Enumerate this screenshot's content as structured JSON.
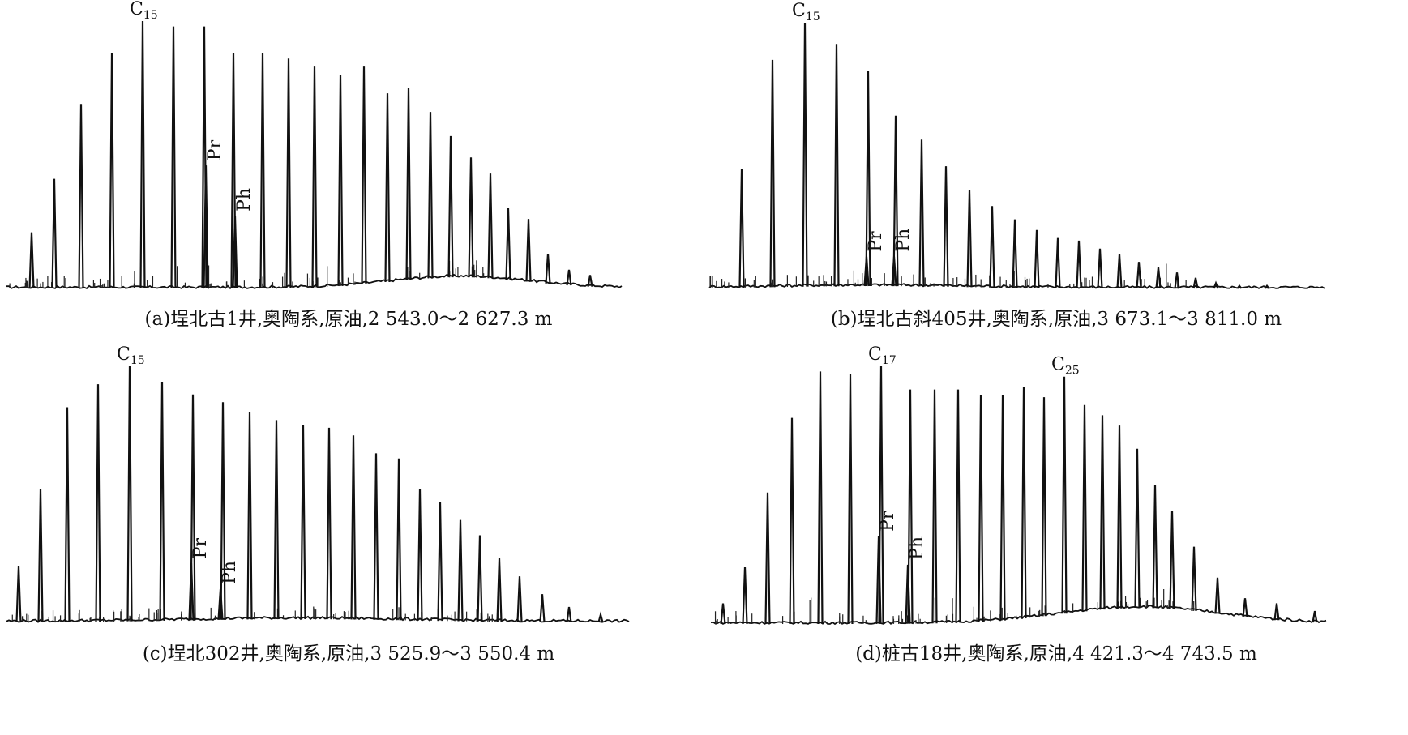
{
  "chart_data": [
    {
      "type": "line",
      "caption": "(a)埕北古1井,奥陶系,原油,2 543.0～2 627.3 m",
      "peak_labels": [
        {
          "base": "C",
          "sub": "15",
          "peak": "C15"
        },
        {
          "base": "Pr",
          "sub": "",
          "peak": "Pr"
        },
        {
          "base": "Ph",
          "sub": "",
          "peak": "Ph"
        }
      ],
      "ymax": 100,
      "peaks": [
        {
          "x": 31,
          "y": 21
        },
        {
          "x": 59,
          "y": 41
        },
        {
          "x": 92,
          "y": 69
        },
        {
          "x": 130,
          "y": 88
        },
        {
          "x": 168,
          "y": 100
        },
        {
          "x": 206,
          "y": 98
        },
        {
          "x": 244,
          "y": 98
        },
        {
          "x": 280,
          "y": 88
        },
        {
          "x": 316,
          "y": 88
        },
        {
          "x": 348,
          "y": 86
        },
        {
          "x": 380,
          "y": 83
        },
        {
          "x": 412,
          "y": 80
        },
        {
          "x": 441,
          "y": 83
        },
        {
          "x": 470,
          "y": 73
        },
        {
          "x": 496,
          "y": 75
        },
        {
          "x": 523,
          "y": 66
        },
        {
          "x": 548,
          "y": 57
        },
        {
          "x": 573,
          "y": 49
        },
        {
          "x": 597,
          "y": 43
        },
        {
          "x": 619,
          "y": 30
        },
        {
          "x": 644,
          "y": 26
        },
        {
          "x": 668,
          "y": 13
        },
        {
          "x": 694,
          "y": 7
        },
        {
          "x": 720,
          "y": 5
        },
        {
          "x": 246,
          "y": 46,
          "name": "Pr"
        },
        {
          "x": 282,
          "y": 27,
          "name": "Ph"
        }
      ]
    },
    {
      "type": "line",
      "caption": "(b)埕北古斜405井,奥陶系,原油,3 673.1～3 811.0 m",
      "peak_labels": [
        {
          "base": "C",
          "sub": "15",
          "peak": "C15"
        },
        {
          "base": "Pr",
          "sub": "",
          "peak": "Pr"
        },
        {
          "base": "Ph",
          "sub": "",
          "peak": "Ph"
        }
      ],
      "ymax": 100,
      "peaks": [
        {
          "x": 40,
          "y": 45
        },
        {
          "x": 78,
          "y": 86
        },
        {
          "x": 118,
          "y": 100
        },
        {
          "x": 157,
          "y": 92
        },
        {
          "x": 196,
          "y": 82
        },
        {
          "x": 230,
          "y": 65
        },
        {
          "x": 262,
          "y": 56
        },
        {
          "x": 292,
          "y": 46
        },
        {
          "x": 321,
          "y": 37
        },
        {
          "x": 349,
          "y": 31
        },
        {
          "x": 377,
          "y": 26
        },
        {
          "x": 404,
          "y": 22
        },
        {
          "x": 430,
          "y": 19
        },
        {
          "x": 456,
          "y": 18
        },
        {
          "x": 482,
          "y": 15
        },
        {
          "x": 506,
          "y": 13
        },
        {
          "x": 530,
          "y": 10
        },
        {
          "x": 554,
          "y": 8
        },
        {
          "x": 577,
          "y": 6
        },
        {
          "x": 600,
          "y": 4
        },
        {
          "x": 625,
          "y": 2
        },
        {
          "x": 654,
          "y": 1
        },
        {
          "x": 688,
          "y": 1
        },
        {
          "x": 194,
          "y": 12,
          "name": "Pr"
        },
        {
          "x": 228,
          "y": 12,
          "name": "Ph"
        }
      ]
    },
    {
      "type": "line",
      "caption": "(c)埕北302井,奥陶系,原油,3 525.9～3 550.4 m",
      "peak_labels": [
        {
          "base": "C",
          "sub": "15",
          "peak": "C15"
        },
        {
          "base": "Pr",
          "sub": "",
          "peak": "Pr"
        },
        {
          "base": "Ph",
          "sub": "",
          "peak": "Ph"
        }
      ],
      "ymax": 100,
      "peaks": [
        {
          "x": 15,
          "y": 22
        },
        {
          "x": 42,
          "y": 52
        },
        {
          "x": 75,
          "y": 84
        },
        {
          "x": 113,
          "y": 93
        },
        {
          "x": 152,
          "y": 100
        },
        {
          "x": 192,
          "y": 94
        },
        {
          "x": 230,
          "y": 89
        },
        {
          "x": 267,
          "y": 86
        },
        {
          "x": 300,
          "y": 82
        },
        {
          "x": 333,
          "y": 79
        },
        {
          "x": 366,
          "y": 77
        },
        {
          "x": 398,
          "y": 76
        },
        {
          "x": 428,
          "y": 73
        },
        {
          "x": 456,
          "y": 66
        },
        {
          "x": 484,
          "y": 64
        },
        {
          "x": 510,
          "y": 52
        },
        {
          "x": 535,
          "y": 47
        },
        {
          "x": 560,
          "y": 40
        },
        {
          "x": 584,
          "y": 34
        },
        {
          "x": 608,
          "y": 25
        },
        {
          "x": 633,
          "y": 18
        },
        {
          "x": 661,
          "y": 11
        },
        {
          "x": 694,
          "y": 6
        },
        {
          "x": 733,
          "y": 3
        },
        {
          "x": 228,
          "y": 23,
          "name": "Pr"
        },
        {
          "x": 264,
          "y": 13,
          "name": "Ph"
        }
      ]
    },
    {
      "type": "line",
      "caption": "(d)桩古18井,奥陶系,原油,4 421.3～4 743.5 m",
      "peak_labels": [
        {
          "base": "C",
          "sub": "17",
          "peak": "C17"
        },
        {
          "base": "C",
          "sub": "25",
          "peak": "C25"
        },
        {
          "base": "Pr",
          "sub": "",
          "peak": "Pr"
        },
        {
          "base": "Ph",
          "sub": "",
          "peak": "Ph"
        }
      ],
      "ymax": 100,
      "peaks": [
        {
          "x": 15,
          "y": 8
        },
        {
          "x": 42,
          "y": 22
        },
        {
          "x": 70,
          "y": 51
        },
        {
          "x": 100,
          "y": 80
        },
        {
          "x": 135,
          "y": 98
        },
        {
          "x": 172,
          "y": 97
        },
        {
          "x": 210,
          "y": 100
        },
        {
          "x": 246,
          "y": 91
        },
        {
          "x": 276,
          "y": 91
        },
        {
          "x": 305,
          "y": 91
        },
        {
          "x": 333,
          "y": 89
        },
        {
          "x": 360,
          "y": 89
        },
        {
          "x": 386,
          "y": 92
        },
        {
          "x": 411,
          "y": 88
        },
        {
          "x": 436,
          "y": 96
        },
        {
          "x": 461,
          "y": 85
        },
        {
          "x": 483,
          "y": 81
        },
        {
          "x": 504,
          "y": 77
        },
        {
          "x": 526,
          "y": 68
        },
        {
          "x": 548,
          "y": 54
        },
        {
          "x": 569,
          "y": 44
        },
        {
          "x": 596,
          "y": 30
        },
        {
          "x": 625,
          "y": 18
        },
        {
          "x": 659,
          "y": 10
        },
        {
          "x": 698,
          "y": 8
        },
        {
          "x": 745,
          "y": 5
        },
        {
          "x": 207,
          "y": 34,
          "name": "Pr"
        },
        {
          "x": 243,
          "y": 23,
          "name": "Ph"
        }
      ]
    }
  ]
}
